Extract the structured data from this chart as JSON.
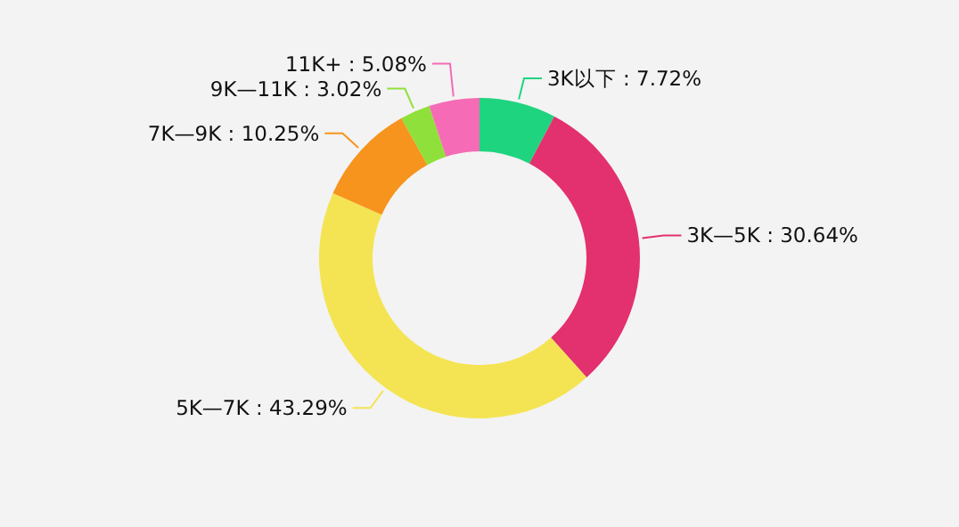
{
  "chart_data": {
    "type": "donut",
    "categories": [
      "3K以下",
      "3K—5K",
      "5K—7K",
      "7K—9K",
      "9K—11K",
      "11K+"
    ],
    "values": [
      7.72,
      30.64,
      43.29,
      10.25,
      3.02,
      5.08
    ],
    "value_labels": [
      "7.72%",
      "30.64%",
      "43.29%",
      "10.25%",
      "3.02%",
      "5.08%"
    ],
    "colors": [
      "#1fd47f",
      "#e3306f",
      "#f4e453",
      "#f7941d",
      "#8fe03a",
      "#f56bb5"
    ]
  }
}
